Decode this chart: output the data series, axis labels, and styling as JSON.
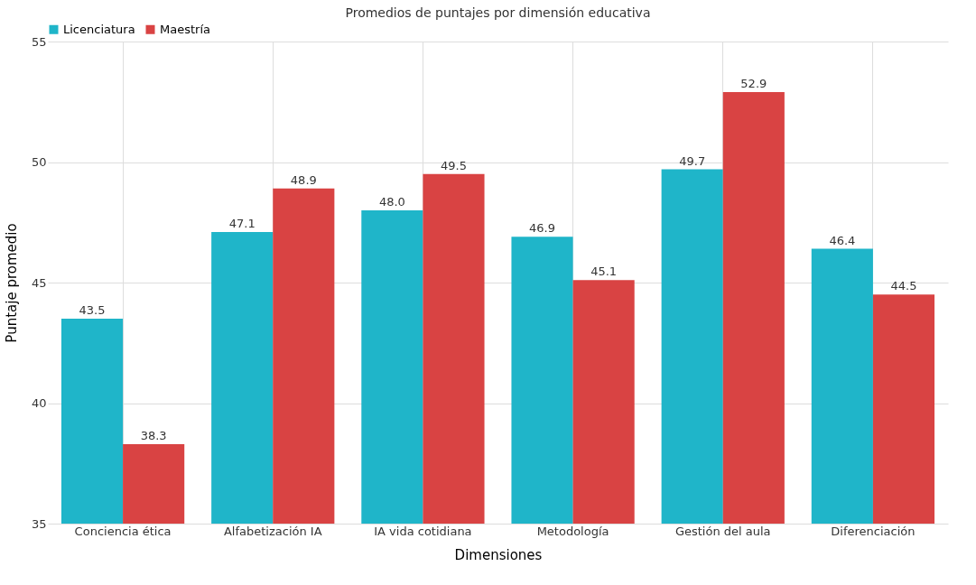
{
  "chart_data": {
    "type": "bar",
    "title": "Promedios de puntajes por dimensión educativa",
    "xlabel": "Dimensiones",
    "ylabel": "Puntaje promedio",
    "categories": [
      "Conciencia ética",
      "Alfabetización IA",
      "IA vida cotidiana",
      "Metodología",
      "Gestión del aula",
      "Diferenciación"
    ],
    "series": [
      {
        "name": "Licenciatura",
        "color": "#1fb5c9",
        "values": [
          43.5,
          47.1,
          48.0,
          46.9,
          49.7,
          46.4
        ],
        "value_labels": [
          "43.5",
          "47.1",
          "48.0",
          "46.9",
          "49.7",
          "46.4"
        ]
      },
      {
        "name": "Maestría",
        "color": "#d94343",
        "values": [
          38.3,
          48.9,
          49.5,
          45.1,
          52.9,
          44.5
        ],
        "value_labels": [
          "38.3",
          "48.9",
          "49.5",
          "45.1",
          "52.9",
          "44.5"
        ]
      }
    ],
    "ylim": [
      35,
      55
    ],
    "yticks": [
      35,
      40,
      45,
      50,
      55
    ],
    "grid": true,
    "legend": "top"
  }
}
